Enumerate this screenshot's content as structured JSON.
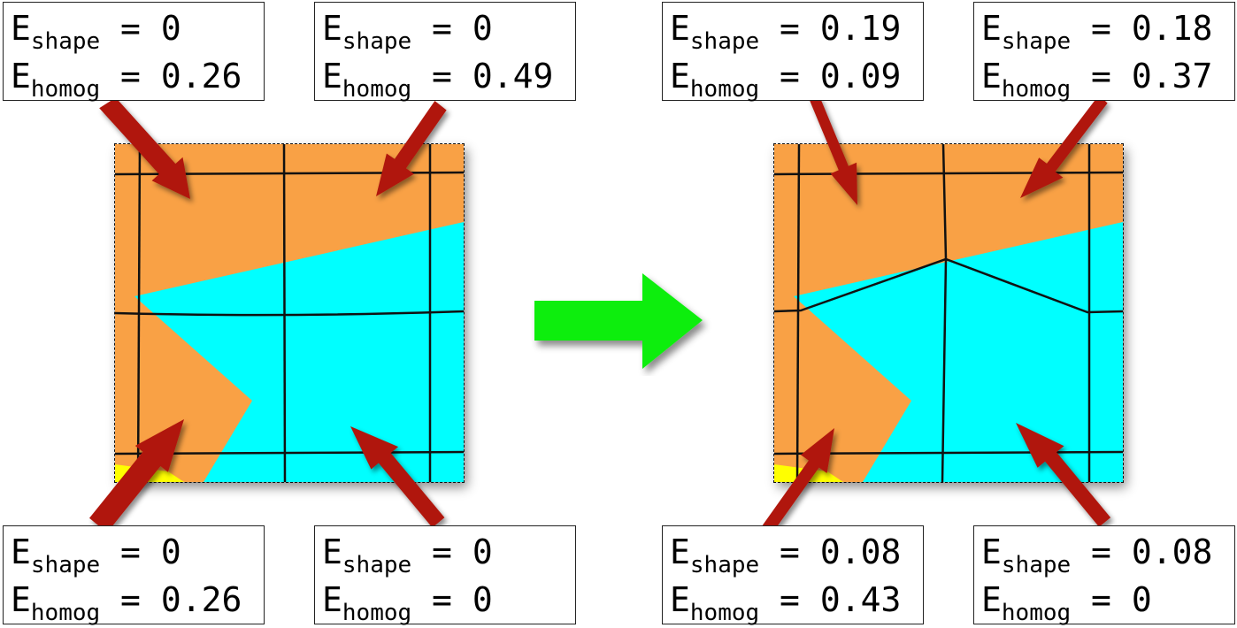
{
  "colors": {
    "orange": "#f9a145",
    "cyan": "#00ffff",
    "yellow": "#ffff00",
    "grid": "#111111",
    "arrow_red": "#b0180a",
    "arrow_green": "#11ee11"
  },
  "labels": {
    "E": "E",
    "shape_sub": "shape",
    "homog_sub": "homog",
    "eq": " = "
  },
  "before": {
    "top_left": {
      "shape": "0",
      "homog": "0.26"
    },
    "top_right": {
      "shape": "0",
      "homog": "0.49"
    },
    "bottom_left": {
      "shape": "0",
      "homog": "0.26"
    },
    "bottom_right": {
      "shape": "0",
      "homog": "0"
    }
  },
  "after": {
    "top_left": {
      "shape": "0.19",
      "homog": "0.09"
    },
    "top_right": {
      "shape": "0.18",
      "homog": "0.37"
    },
    "bottom_left": {
      "shape": "0.08",
      "homog": "0.43"
    },
    "bottom_right": {
      "shape": "0.08",
      "homog": "0"
    }
  },
  "transition_icon": "right-arrow-icon"
}
